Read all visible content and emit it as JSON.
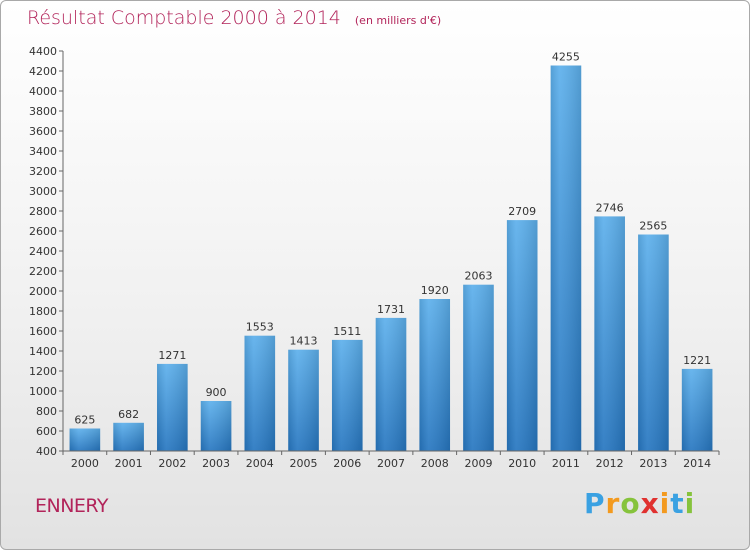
{
  "header": {
    "title": "Résultat Comptable 2000 à 2014",
    "unit": "(en milliers d'€)"
  },
  "footer": {
    "town": "ENNERY",
    "logo_letters": [
      "P",
      "r",
      "o",
      "x",
      "i",
      "t",
      "i"
    ],
    "logo_colors": [
      "#3aa1e2",
      "#f39a1f",
      "#86c33c",
      "#e0312f",
      "#f39a1f",
      "#3aa1e2",
      "#86c33c"
    ]
  },
  "chart_data": {
    "type": "bar",
    "title": "Résultat Comptable 2000 à 2014",
    "subtitle": "(en milliers d'€)",
    "xlabel": "",
    "ylabel": "",
    "categories": [
      "2000",
      "2001",
      "2002",
      "2003",
      "2004",
      "2005",
      "2006",
      "2007",
      "2008",
      "2009",
      "2010",
      "2011",
      "2012",
      "2013",
      "2014"
    ],
    "values": [
      625,
      682,
      1271,
      900,
      1553,
      1413,
      1511,
      1731,
      1920,
      2063,
      2709,
      4255,
      2746,
      2565,
      1221
    ],
    "ylim": [
      400,
      4400
    ],
    "ytick_step": 200,
    "grid": false,
    "legend": "none",
    "bar_color": "#3a8fd6"
  }
}
